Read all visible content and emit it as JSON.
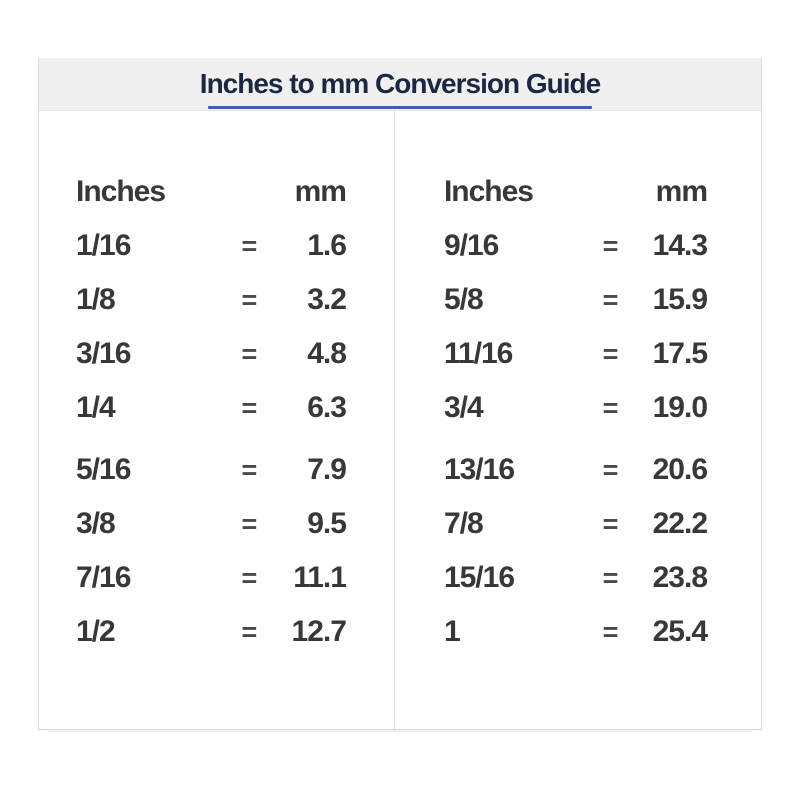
{
  "header": {
    "title": "Inches to mm Conversion Guide"
  },
  "equals_sign": "=",
  "columns": [
    {
      "inches_label": "Inches",
      "mm_label": "mm",
      "rows": [
        {
          "inches": "1/16",
          "mm": "1.6"
        },
        {
          "inches": "1/8",
          "mm": "3.2"
        },
        {
          "inches": "3/16",
          "mm": "4.8"
        },
        {
          "inches": "1/4",
          "mm": "6.3"
        },
        {
          "inches": "5/16",
          "mm": "7.9"
        },
        {
          "inches": "3/8",
          "mm": "9.5"
        },
        {
          "inches": "7/16",
          "mm": "11.1"
        },
        {
          "inches": "1/2",
          "mm": "12.7"
        }
      ]
    },
    {
      "inches_label": "Inches",
      "mm_label": "mm",
      "rows": [
        {
          "inches": "9/16",
          "mm": "14.3"
        },
        {
          "inches": "5/8",
          "mm": "15.9"
        },
        {
          "inches": "11/16",
          "mm": "17.5"
        },
        {
          "inches": "3/4",
          "mm": "19.0"
        },
        {
          "inches": "13/16",
          "mm": "20.6"
        },
        {
          "inches": "7/8",
          "mm": "22.2"
        },
        {
          "inches": "15/16",
          "mm": "23.8"
        },
        {
          "inches": "1",
          "mm": "25.4"
        }
      ]
    }
  ],
  "colors": {
    "header_bg": "#f0f0f1",
    "title_color": "#1c2742",
    "underline": "#44619f",
    "border": "#dcdcdc",
    "text": "#383838"
  },
  "chart_data": {
    "type": "table",
    "title": "Inches to mm Conversion Guide",
    "columns": [
      "Inches",
      "mm"
    ],
    "rows": [
      [
        "1/16",
        1.6
      ],
      [
        "1/8",
        3.2
      ],
      [
        "3/16",
        4.8
      ],
      [
        "1/4",
        6.3
      ],
      [
        "5/16",
        7.9
      ],
      [
        "3/8",
        9.5
      ],
      [
        "7/16",
        11.1
      ],
      [
        "1/2",
        12.7
      ],
      [
        "9/16",
        14.3
      ],
      [
        "5/8",
        15.9
      ],
      [
        "11/16",
        17.5
      ],
      [
        "3/4",
        19.0
      ],
      [
        "13/16",
        20.6
      ],
      [
        "7/8",
        22.2
      ],
      [
        "15/16",
        23.8
      ],
      [
        "1",
        25.4
      ]
    ]
  }
}
